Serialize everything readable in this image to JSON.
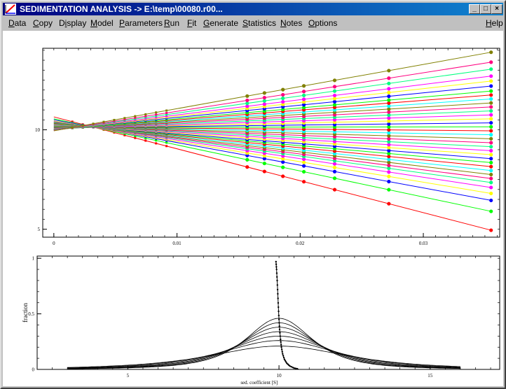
{
  "window": {
    "title": "SEDIMENTATION ANALYSIS -> E:\\temp\\00080.r00...",
    "minimize_glyph": "_",
    "maximize_glyph": "□",
    "close_glyph": "×"
  },
  "menu": [
    {
      "label": "Data",
      "accel": 0
    },
    {
      "label": "Copy",
      "accel": 0
    },
    {
      "label": "Display",
      "accel": 1
    },
    {
      "label": "Model",
      "accel": 0
    },
    {
      "label": "Parameters",
      "accel": 0
    },
    {
      "label": "Run",
      "accel": 0
    },
    {
      "label": "Fit",
      "accel": 0
    },
    {
      "label": "Generate",
      "accel": 0
    },
    {
      "label": "Statistics",
      "accel": 0
    },
    {
      "label": "Notes",
      "accel": 0
    },
    {
      "label": "Options",
      "accel": 0
    },
    {
      "label": "Help",
      "accel": 0
    }
  ],
  "chart_data": [
    {
      "type": "line",
      "title": "",
      "xlabel": "",
      "ylabel": "",
      "xlim": [
        -0.0009,
        0.0362
      ],
      "ylim": [
        4.6,
        14.1
      ],
      "x_ticks": [
        0,
        0.01,
        0.02,
        0.03
      ],
      "x_tick_labels": [
        "0",
        "0.01",
        "0.02",
        "0.03"
      ],
      "y_ticks": [
        5,
        10
      ],
      "y_tick_labels": [
        "5",
        "10"
      ],
      "grid": false,
      "line_start_x": 0,
      "line_end_x": 0.0355,
      "point_x": [
        0.0157,
        0.0171,
        0.0186,
        0.0203,
        0.0228,
        0.0272,
        0.0355
      ],
      "colors": [
        "#ff0000",
        "#00ff00",
        "#0000ff",
        "#ffff00",
        "#ff00ff",
        "#00ff80",
        "#ff0080",
        "#808000",
        "#00ffff"
      ],
      "series": [
        {
          "y0": 10.65,
          "y_end": 4.95
        },
        {
          "y0": 10.55,
          "y_end": 5.9
        },
        {
          "y0": 10.5,
          "y_end": 6.45
        },
        {
          "y0": 10.45,
          "y_end": 6.8
        },
        {
          "y0": 10.42,
          "y_end": 7.1
        },
        {
          "y0": 10.4,
          "y_end": 7.35
        },
        {
          "y0": 10.38,
          "y_end": 7.55
        },
        {
          "y0": 10.36,
          "y_end": 7.75
        },
        {
          "y0": 10.34,
          "y_end": 7.95
        },
        {
          "y0": 10.32,
          "y_end": 8.15
        },
        {
          "y0": 10.3,
          "y_end": 8.35
        },
        {
          "y0": 10.28,
          "y_end": 8.55
        },
        {
          "y0": 10.26,
          "y_end": 8.75
        },
        {
          "y0": 10.24,
          "y_end": 8.95
        },
        {
          "y0": 10.22,
          "y_end": 9.15
        },
        {
          "y0": 10.2,
          "y_end": 9.35
        },
        {
          "y0": 10.18,
          "y_end": 9.55
        },
        {
          "y0": 10.16,
          "y_end": 9.75
        },
        {
          "y0": 10.14,
          "y_end": 9.95
        },
        {
          "y0": 10.12,
          "y_end": 10.15
        },
        {
          "y0": 10.1,
          "y_end": 10.35
        },
        {
          "y0": 10.08,
          "y_end": 10.55
        },
        {
          "y0": 10.06,
          "y_end": 10.75
        },
        {
          "y0": 10.05,
          "y_end": 10.95
        },
        {
          "y0": 10.04,
          "y_end": 11.15
        },
        {
          "y0": 10.03,
          "y_end": 11.35
        },
        {
          "y0": 10.02,
          "y_end": 11.55
        },
        {
          "y0": 10.01,
          "y_end": 11.75
        },
        {
          "y0": 10.0,
          "y_end": 11.95
        },
        {
          "y0": 10.0,
          "y_end": 12.2
        },
        {
          "y0": 9.99,
          "y_end": 12.45
        },
        {
          "y0": 9.98,
          "y_end": 12.7
        },
        {
          "y0": 9.97,
          "y_end": 13.05
        },
        {
          "y0": 9.96,
          "y_end": 13.4
        },
        {
          "y0": 9.95,
          "y_end": 13.9
        }
      ]
    },
    {
      "type": "line",
      "title": "",
      "xlabel": "sed. coefficient [S]",
      "ylabel": "fraction",
      "xlim": [
        2.0,
        17.3
      ],
      "ylim": [
        0,
        1.02
      ],
      "x_ticks": [
        5,
        10,
        15
      ],
      "x_tick_labels": [
        "5",
        "10",
        "15"
      ],
      "y_ticks": [
        0,
        0.5,
        1
      ],
      "y_tick_labels": [
        "0",
        "0.5",
        "1"
      ],
      "grid": false,
      "distributions": [
        {
          "center": 10.0,
          "height": 0.21,
          "width": 2.3
        },
        {
          "center": 10.0,
          "height": 0.26,
          "width": 1.95
        },
        {
          "center": 10.0,
          "height": 0.3,
          "width": 1.7
        },
        {
          "center": 10.0,
          "height": 0.34,
          "width": 1.5
        },
        {
          "center": 10.0,
          "height": 0.38,
          "width": 1.35
        },
        {
          "center": 10.0,
          "height": 0.42,
          "width": 1.22
        },
        {
          "center": 10.0,
          "height": 0.46,
          "width": 1.12
        }
      ],
      "integral_curve": {
        "x": [
          9.9,
          9.92,
          9.94,
          9.96,
          9.98,
          10.0,
          10.02,
          10.05,
          10.08,
          10.12,
          10.18,
          10.26,
          10.36,
          10.5,
          10.65
        ],
        "y": [
          0.97,
          0.9,
          0.8,
          0.68,
          0.56,
          0.45,
          0.36,
          0.27,
          0.2,
          0.14,
          0.09,
          0.055,
          0.03,
          0.012,
          0.003
        ]
      }
    }
  ]
}
